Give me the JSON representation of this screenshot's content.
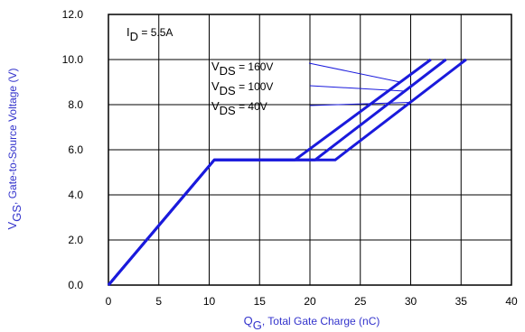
{
  "chart_data": {
    "type": "line",
    "xlabel_main": "Q",
    "xlabel_sub": "G",
    "xlabel_text": ",   Total Gate Charge (nC)",
    "ylabel_main": "V",
    "ylabel_sub": "GS",
    "ylabel_text": ", Gate-to-Source Voltage (V)",
    "xlim": [
      0,
      40
    ],
    "ylim": [
      0,
      12
    ],
    "x_ticks": [
      "0",
      "5",
      "10",
      "15",
      "20",
      "25",
      "30",
      "35",
      "40"
    ],
    "y_ticks": [
      "0.0",
      "2.0",
      "4.0",
      "6.0",
      "8.0",
      "10.0",
      "12.0"
    ],
    "grid": true,
    "condition": {
      "main": "I",
      "sub": "D",
      "text": " = 5.5A"
    },
    "series": [
      {
        "name_main": "V",
        "name_sub": "DS",
        "name_value": " = 160V",
        "x": [
          0,
          10.5,
          18.5,
          32
        ],
        "y": [
          0,
          5.55,
          5.55,
          10
        ]
      },
      {
        "name_main": "V",
        "name_sub": "DS",
        "name_value": " = 100V",
        "x": [
          0,
          10.5,
          20.5,
          33.5
        ],
        "y": [
          0,
          5.55,
          5.55,
          10
        ]
      },
      {
        "name_main": "V",
        "name_sub": "DS",
        "name_value": " = 40V",
        "x": [
          0,
          10.5,
          22.5,
          35.5
        ],
        "y": [
          0,
          5.55,
          5.55,
          10
        ]
      }
    ],
    "colors": {
      "series": "#1a1adc",
      "axis_label": "#3333cc",
      "text": "#000000",
      "grid": "#000000"
    }
  }
}
